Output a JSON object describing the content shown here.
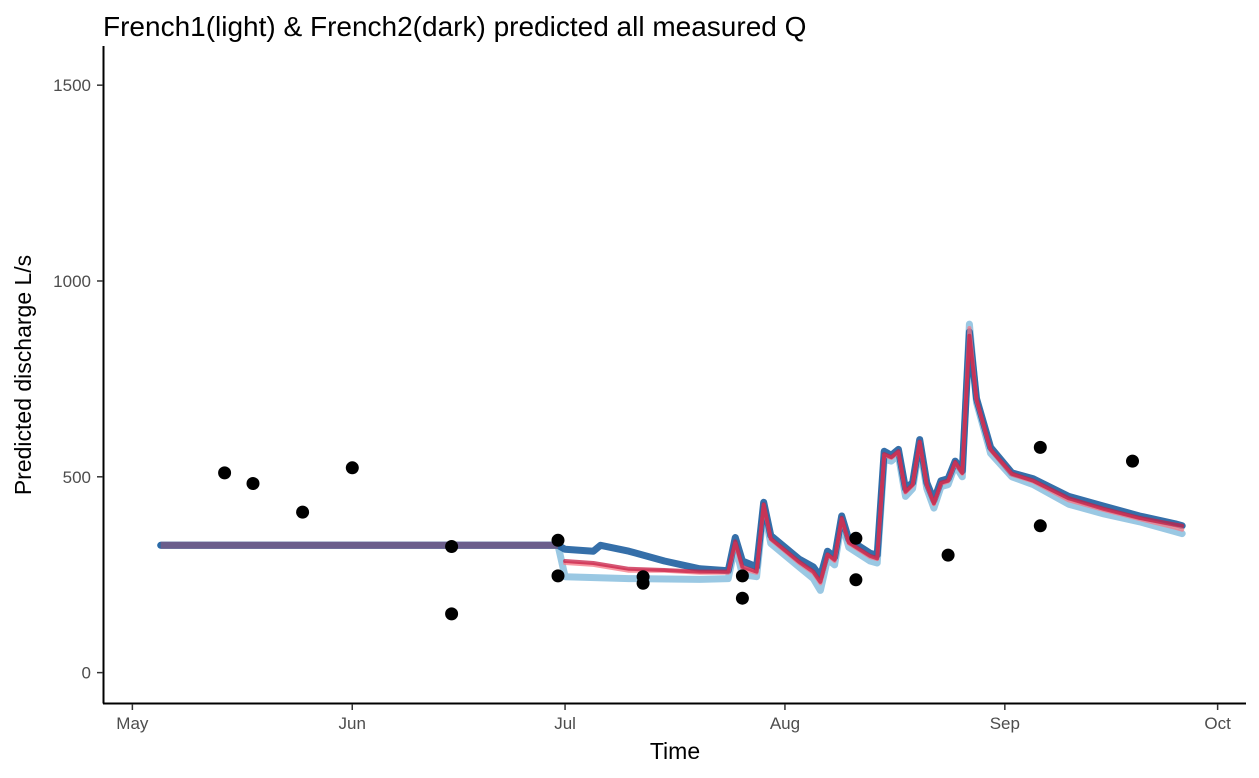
{
  "chart_data": {
    "type": "line",
    "title": "French1(light) & French2(dark) predicted all measured Q",
    "xlabel": "Time",
    "ylabel": "Predicted discharge L/s",
    "x_ticks": [
      "May",
      "Jun",
      "Jul",
      "Aug",
      "Sep",
      "Oct"
    ],
    "x_tick_dates": [
      "2019-05-01",
      "2019-06-01",
      "2019-07-01",
      "2019-08-01",
      "2019-09-01",
      "2019-10-01"
    ],
    "y_ticks": [
      0,
      500,
      1000,
      1500
    ],
    "xlim": [
      "2019-04-27",
      "2019-10-05"
    ],
    "ylim": [
      -75,
      1600
    ],
    "grid": false,
    "legend": "none",
    "colors": {
      "light": "#8fc2e0",
      "dark": "#1f5fa0",
      "light_red": "#f77784",
      "dark_red": "#c71f45",
      "merged": "#6b5e8c",
      "points": "#000000"
    },
    "series": [
      {
        "role": "French1 (light)",
        "color": "#8fc2e0",
        "points": [
          [
            "2019-05-05",
            325
          ],
          [
            "2019-06-30",
            325
          ],
          [
            "2019-07-01",
            245
          ],
          [
            "2019-07-10",
            240
          ],
          [
            "2019-07-20",
            238
          ],
          [
            "2019-07-24",
            240
          ],
          [
            "2019-07-25",
            325
          ],
          [
            "2019-07-26",
            250
          ],
          [
            "2019-07-28",
            245
          ],
          [
            "2019-07-29",
            420
          ],
          [
            "2019-07-30",
            330
          ],
          [
            "2019-08-03",
            270
          ],
          [
            "2019-08-05",
            240
          ],
          [
            "2019-08-06",
            210
          ],
          [
            "2019-08-07",
            290
          ],
          [
            "2019-08-08",
            275
          ],
          [
            "2019-08-09",
            385
          ],
          [
            "2019-08-10",
            320
          ],
          [
            "2019-08-13",
            285
          ],
          [
            "2019-08-14",
            280
          ],
          [
            "2019-08-15",
            545
          ],
          [
            "2019-08-16",
            540
          ],
          [
            "2019-08-17",
            555
          ],
          [
            "2019-08-18",
            450
          ],
          [
            "2019-08-19",
            470
          ],
          [
            "2019-08-20",
            580
          ],
          [
            "2019-08-21",
            470
          ],
          [
            "2019-08-22",
            420
          ],
          [
            "2019-08-23",
            475
          ],
          [
            "2019-08-24",
            480
          ],
          [
            "2019-08-25",
            530
          ],
          [
            "2019-08-26",
            500
          ],
          [
            "2019-08-27",
            890
          ],
          [
            "2019-08-28",
            690
          ],
          [
            "2019-08-30",
            560
          ],
          [
            "2019-09-02",
            500
          ],
          [
            "2019-09-05",
            480
          ],
          [
            "2019-09-10",
            430
          ],
          [
            "2019-09-15",
            405
          ],
          [
            "2019-09-20",
            385
          ],
          [
            "2019-09-25",
            360
          ],
          [
            "2019-09-26",
            355
          ]
        ]
      },
      {
        "role": "French2 (dark)",
        "color": "#1f5fa0",
        "points": [
          [
            "2019-05-05",
            325
          ],
          [
            "2019-06-30",
            325
          ],
          [
            "2019-07-01",
            315
          ],
          [
            "2019-07-05",
            310
          ],
          [
            "2019-07-06",
            325
          ],
          [
            "2019-07-10",
            310
          ],
          [
            "2019-07-15",
            285
          ],
          [
            "2019-07-20",
            265
          ],
          [
            "2019-07-24",
            260
          ],
          [
            "2019-07-25",
            345
          ],
          [
            "2019-07-26",
            285
          ],
          [
            "2019-07-28",
            270
          ],
          [
            "2019-07-29",
            435
          ],
          [
            "2019-07-30",
            350
          ],
          [
            "2019-08-03",
            290
          ],
          [
            "2019-08-05",
            270
          ],
          [
            "2019-08-06",
            245
          ],
          [
            "2019-08-07",
            310
          ],
          [
            "2019-08-08",
            295
          ],
          [
            "2019-08-09",
            400
          ],
          [
            "2019-08-10",
            340
          ],
          [
            "2019-08-13",
            305
          ],
          [
            "2019-08-14",
            300
          ],
          [
            "2019-08-15",
            565
          ],
          [
            "2019-08-16",
            555
          ],
          [
            "2019-08-17",
            570
          ],
          [
            "2019-08-18",
            470
          ],
          [
            "2019-08-19",
            485
          ],
          [
            "2019-08-20",
            595
          ],
          [
            "2019-08-21",
            485
          ],
          [
            "2019-08-22",
            440
          ],
          [
            "2019-08-23",
            490
          ],
          [
            "2019-08-24",
            495
          ],
          [
            "2019-08-25",
            540
          ],
          [
            "2019-08-26",
            515
          ],
          [
            "2019-08-27",
            870
          ],
          [
            "2019-08-28",
            700
          ],
          [
            "2019-08-30",
            575
          ],
          [
            "2019-09-02",
            510
          ],
          [
            "2019-09-05",
            495
          ],
          [
            "2019-09-10",
            450
          ],
          [
            "2019-09-15",
            425
          ],
          [
            "2019-09-20",
            400
          ],
          [
            "2019-09-25",
            380
          ],
          [
            "2019-09-26",
            375
          ]
        ]
      },
      {
        "role": "light red",
        "color": "#f77784",
        "points": [
          [
            "2019-07-01",
            280
          ],
          [
            "2019-07-05",
            275
          ],
          [
            "2019-07-10",
            260
          ],
          [
            "2019-07-15",
            260
          ],
          [
            "2019-07-20",
            255
          ],
          [
            "2019-07-24",
            255
          ],
          [
            "2019-07-25",
            330
          ],
          [
            "2019-07-26",
            265
          ],
          [
            "2019-07-28",
            255
          ],
          [
            "2019-07-29",
            428
          ],
          [
            "2019-07-30",
            340
          ],
          [
            "2019-08-03",
            280
          ],
          [
            "2019-08-05",
            255
          ],
          [
            "2019-08-06",
            228
          ],
          [
            "2019-08-07",
            300
          ],
          [
            "2019-08-08",
            285
          ],
          [
            "2019-08-09",
            392
          ],
          [
            "2019-08-10",
            330
          ],
          [
            "2019-08-13",
            295
          ],
          [
            "2019-08-14",
            290
          ],
          [
            "2019-08-15",
            555
          ],
          [
            "2019-08-16",
            548
          ],
          [
            "2019-08-17",
            562
          ],
          [
            "2019-08-18",
            460
          ],
          [
            "2019-08-19",
            478
          ],
          [
            "2019-08-20",
            588
          ],
          [
            "2019-08-21",
            478
          ],
          [
            "2019-08-22",
            430
          ],
          [
            "2019-08-23",
            482
          ],
          [
            "2019-08-24",
            488
          ],
          [
            "2019-08-25",
            535
          ],
          [
            "2019-08-26",
            508
          ],
          [
            "2019-08-27",
            880
          ],
          [
            "2019-08-28",
            695
          ],
          [
            "2019-08-30",
            568
          ],
          [
            "2019-09-02",
            505
          ],
          [
            "2019-09-05",
            488
          ],
          [
            "2019-09-10",
            440
          ],
          [
            "2019-09-15",
            415
          ],
          [
            "2019-09-20",
            392
          ],
          [
            "2019-09-25",
            370
          ],
          [
            "2019-09-26",
            365
          ]
        ]
      },
      {
        "role": "dark red",
        "color": "#c71f45",
        "points": [
          [
            "2019-07-01",
            285
          ],
          [
            "2019-07-05",
            280
          ],
          [
            "2019-07-10",
            265
          ],
          [
            "2019-07-15",
            262
          ],
          [
            "2019-07-20",
            258
          ],
          [
            "2019-07-24",
            258
          ],
          [
            "2019-07-25",
            335
          ],
          [
            "2019-07-26",
            270
          ],
          [
            "2019-07-28",
            258
          ],
          [
            "2019-07-29",
            430
          ],
          [
            "2019-07-30",
            342
          ],
          [
            "2019-08-03",
            283
          ],
          [
            "2019-08-05",
            258
          ],
          [
            "2019-08-06",
            232
          ],
          [
            "2019-08-07",
            302
          ],
          [
            "2019-08-08",
            288
          ],
          [
            "2019-08-09",
            395
          ],
          [
            "2019-08-10",
            332
          ],
          [
            "2019-08-13",
            298
          ],
          [
            "2019-08-14",
            292
          ],
          [
            "2019-08-15",
            558
          ],
          [
            "2019-08-16",
            550
          ],
          [
            "2019-08-17",
            565
          ],
          [
            "2019-08-18",
            462
          ],
          [
            "2019-08-19",
            480
          ],
          [
            "2019-08-20",
            590
          ],
          [
            "2019-08-21",
            480
          ],
          [
            "2019-08-22",
            432
          ],
          [
            "2019-08-23",
            485
          ],
          [
            "2019-08-24",
            490
          ],
          [
            "2019-08-25",
            538
          ],
          [
            "2019-08-26",
            510
          ],
          [
            "2019-08-27",
            860
          ],
          [
            "2019-08-28",
            698
          ],
          [
            "2019-08-30",
            570
          ],
          [
            "2019-09-02",
            508
          ],
          [
            "2019-09-05",
            490
          ],
          [
            "2019-09-10",
            445
          ],
          [
            "2019-09-15",
            418
          ],
          [
            "2019-09-20",
            395
          ],
          [
            "2019-09-25",
            378
          ],
          [
            "2019-09-26",
            375
          ]
        ]
      }
    ],
    "measured_points": [
      [
        "2019-05-14",
        510
      ],
      [
        "2019-05-18",
        483
      ],
      [
        "2019-05-25",
        410
      ],
      [
        "2019-06-01",
        523
      ],
      [
        "2019-06-15",
        322
      ],
      [
        "2019-06-15",
        150
      ],
      [
        "2019-06-30",
        338
      ],
      [
        "2019-06-30",
        247
      ],
      [
        "2019-07-12",
        245
      ],
      [
        "2019-07-12",
        228
      ],
      [
        "2019-07-26",
        247
      ],
      [
        "2019-07-26",
        190
      ],
      [
        "2019-08-11",
        343
      ],
      [
        "2019-08-11",
        237
      ],
      [
        "2019-08-24",
        300
      ],
      [
        "2019-09-06",
        575
      ],
      [
        "2019-09-06",
        375
      ],
      [
        "2019-09-19",
        540
      ]
    ]
  }
}
